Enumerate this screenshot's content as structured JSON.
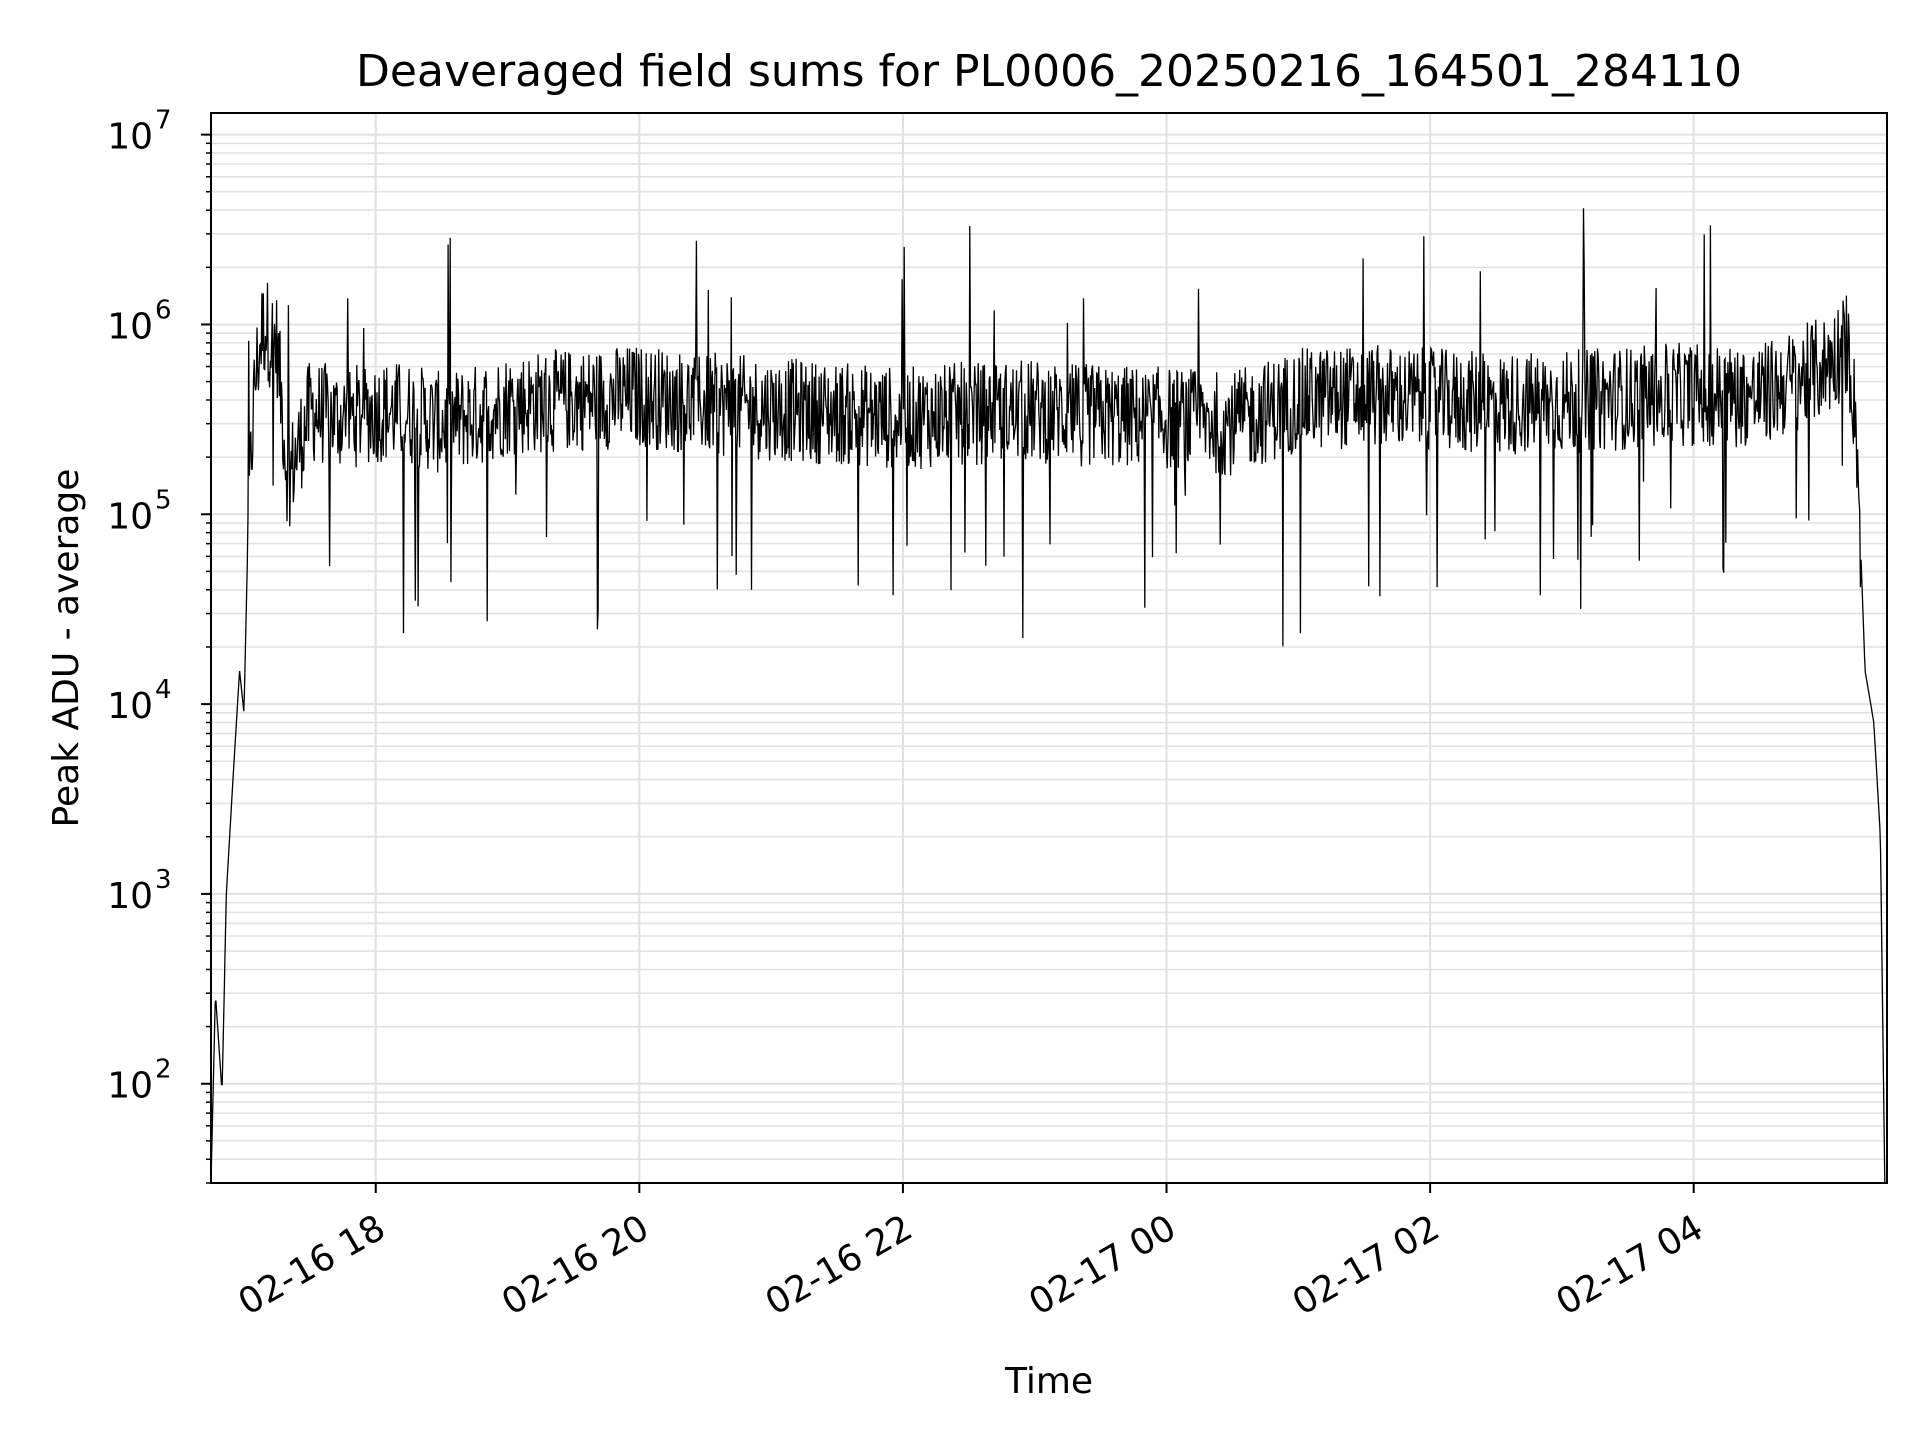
{
  "chart_data": {
    "type": "line",
    "title": "Deaveraged field sums for PL0006_20250216_164501_284110",
    "xlabel": "Time",
    "ylabel": "Peak ADU - average",
    "y_scale": "log",
    "ylim": [
      30,
      13000000
    ],
    "xlim": [
      "2025-02-16 16:45",
      "2025-02-17 05:28"
    ],
    "grid": true,
    "line_color": "#000000",
    "grid_color": "#e0e0e0",
    "x_ticks": [
      {
        "label": "02-16 18",
        "time": "2025-02-16 18:00"
      },
      {
        "label": "02-16 20",
        "time": "2025-02-16 20:00"
      },
      {
        "label": "02-16 22",
        "time": "2025-02-16 22:00"
      },
      {
        "label": "02-17 00",
        "time": "2025-02-17 00:00"
      },
      {
        "label": "02-17 02",
        "time": "2025-02-17 02:00"
      },
      {
        "label": "02-17 04",
        "time": "2025-02-17 04:00"
      }
    ],
    "y_ticks": [
      {
        "base": "10",
        "exp": "2",
        "value": 100
      },
      {
        "base": "10",
        "exp": "3",
        "value": 1000
      },
      {
        "base": "10",
        "exp": "4",
        "value": 10000
      },
      {
        "base": "10",
        "exp": "5",
        "value": 100000
      },
      {
        "base": "10",
        "exp": "6",
        "value": 1000000
      },
      {
        "base": "10",
        "exp": "7",
        "value": 10000000
      }
    ],
    "series": [
      {
        "x": [
          "2025-02-16 16:45",
          "2025-02-16 16:47",
          "2025-02-16 16:50",
          "2025-02-16 16:52",
          "2025-02-16 16:55",
          "2025-02-16 16:58",
          "2025-02-16 17:00",
          "2025-02-16 17:02",
          "2025-02-16 17:05",
          "2025-02-16 17:08",
          "2025-02-16 17:10",
          "2025-02-16 17:12",
          "2025-02-16 17:15",
          "2025-02-16 17:20",
          "2025-02-16 17:30",
          "2025-02-16 17:45",
          "2025-02-16 18:00",
          "2025-02-16 18:15",
          "2025-02-16 18:30",
          "2025-02-16 18:45",
          "2025-02-16 19:00",
          "2025-02-16 19:30",
          "2025-02-16 20:00",
          "2025-02-16 20:30",
          "2025-02-16 21:00",
          "2025-02-16 21:30",
          "2025-02-16 22:00",
          "2025-02-16 22:30",
          "2025-02-16 23:00",
          "2025-02-16 23:30",
          "2025-02-17 00:00",
          "2025-02-17 00:30",
          "2025-02-17 01:00",
          "2025-02-17 01:30",
          "2025-02-17 02:00",
          "2025-02-17 02:30",
          "2025-02-17 03:00",
          "2025-02-17 03:30",
          "2025-02-17 04:00",
          "2025-02-17 04:30",
          "2025-02-17 05:00",
          "2025-02-17 05:10",
          "2025-02-17 05:14",
          "2025-02-17 05:18",
          "2025-02-17 05:22",
          "2025-02-17 05:25",
          "2025-02-17 05:27"
        ],
        "y": [
          30,
          300,
          90,
          1000,
          4000,
          15000,
          9000,
          100000,
          500000,
          900000,
          1000000,
          850000,
          800000,
          150000,
          350000,
          320000,
          350000,
          340000,
          300000,
          330000,
          380000,
          400000,
          420000,
          380000,
          360000,
          340000,
          320000,
          340000,
          350000,
          330000,
          320000,
          300000,
          400000,
          420000,
          400000,
          380000,
          390000,
          410000,
          430000,
          420000,
          600000,
          800000,
          300000,
          15000,
          8000,
          2000,
          30
        ]
      }
    ]
  }
}
